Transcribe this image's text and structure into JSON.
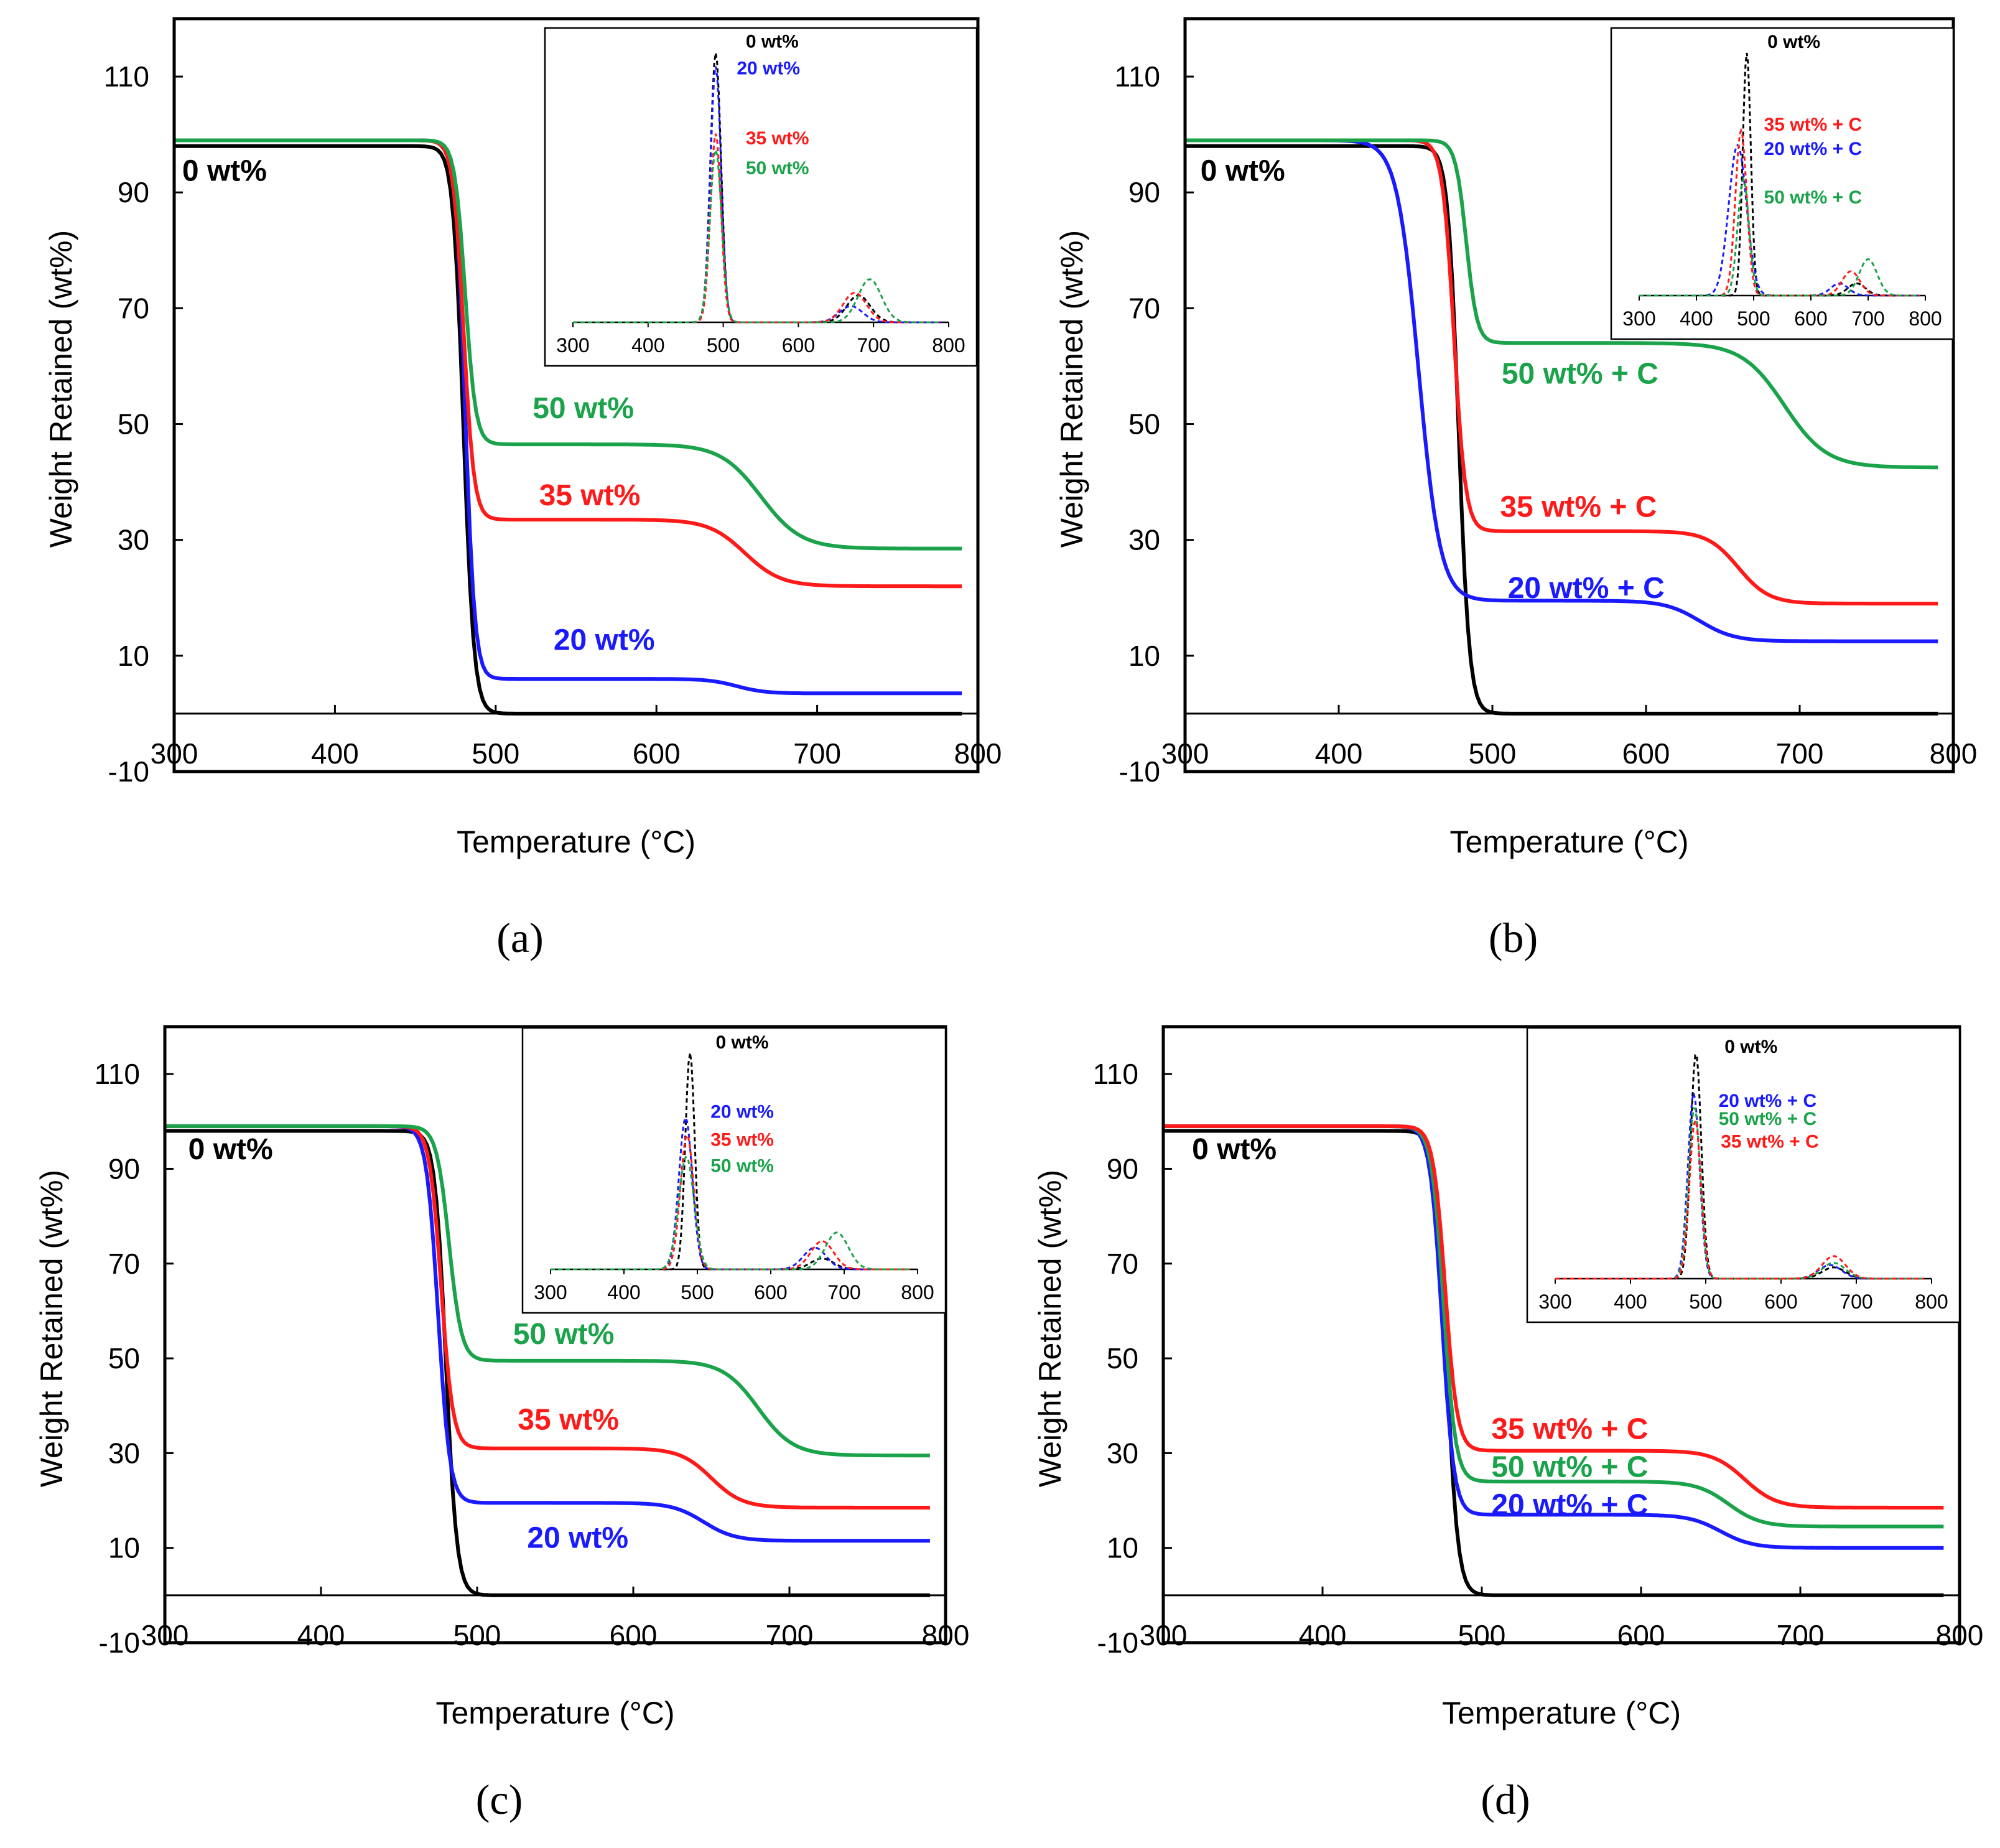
{
  "colors": {
    "0": "#000000",
    "20": "#1a1aff",
    "35": "#ff1a1a",
    "50": "#1aa34a"
  },
  "chart_data": [
    {
      "panel": "(a)",
      "type": "line",
      "xlabel": "Temperature (°C)",
      "ylabel": "Weight Retained (wt%)",
      "xlim": [
        300,
        800
      ],
      "ylim": [
        -10,
        120
      ],
      "xticks": [
        "300",
        "400",
        "500",
        "600",
        "700",
        "800"
      ],
      "yticks": [
        "-10",
        "10",
        "30",
        "50",
        "70",
        "90",
        "110"
      ],
      "series": [
        {
          "key": "0",
          "name": "0 wt%",
          "residue1": 0,
          "t1": 480,
          "w1": 13,
          "residue2": 0,
          "t2": 650,
          "w2": 40,
          "start": 98
        },
        {
          "key": "20",
          "name": "20 wt%",
          "residue1": 6,
          "t1": 481,
          "w1": 12,
          "residue2": 3.5,
          "t2": 650,
          "w2": 35,
          "start": 99
        },
        {
          "key": "35",
          "name": "35 wt%",
          "residue1": 33.5,
          "t1": 480,
          "w1": 13,
          "residue2": 22,
          "t2": 655,
          "w2": 45,
          "start": 99
        },
        {
          "key": "50",
          "name": "50 wt%",
          "residue1": 46.5,
          "t1": 481,
          "w1": 13,
          "residue2": 28.5,
          "t2": 665,
          "w2": 50,
          "start": 99
        }
      ],
      "labels": [
        {
          "key": "0",
          "text": "0 wt%",
          "x": 305,
          "y": 92
        },
        {
          "key": "50",
          "text": "50 wt%",
          "x": 523,
          "y": 51
        },
        {
          "key": "35",
          "text": "35 wt%",
          "x": 527,
          "y": 36
        },
        {
          "key": "20",
          "text": "20 wt%",
          "x": 536,
          "y": 11
        }
      ],
      "inset": {
        "xlim": [
          300,
          800
        ],
        "xticks": [
          "300",
          "400",
          "500",
          "600",
          "700",
          "800"
        ],
        "peaks": [
          {
            "key": "0",
            "t": 490,
            "h": 1.0,
            "w": 10,
            "t2": 680,
            "h2": 0.1
          },
          {
            "key": "20",
            "t": 490,
            "h": 0.95,
            "w": 10,
            "t2": 670,
            "h2": 0.06
          },
          {
            "key": "35",
            "t": 490,
            "h": 0.7,
            "w": 10,
            "t2": 675,
            "h2": 0.11
          },
          {
            "key": "50",
            "t": 490,
            "h": 0.64,
            "w": 11,
            "t2": 695,
            "h2": 0.16
          }
        ],
        "labels": [
          {
            "key": "0",
            "text": "0 wt%",
            "x": 530,
            "y": 1.02
          },
          {
            "key": "20",
            "text": "20 wt%",
            "x": 518,
            "y": 0.92
          },
          {
            "key": "35",
            "text": "35 wt%",
            "x": 530,
            "y": 0.66
          },
          {
            "key": "50",
            "text": "50 wt%",
            "x": 530,
            "y": 0.55
          }
        ]
      }
    },
    {
      "panel": "(b)",
      "type": "line",
      "xlabel": "Temperature (°C)",
      "ylabel": "Weight Retained (wt%)",
      "xlim": [
        300,
        800
      ],
      "ylim": [
        -10,
        120
      ],
      "xticks": [
        "300",
        "400",
        "500",
        "600",
        "700",
        "800"
      ],
      "yticks": [
        "-10",
        "10",
        "30",
        "50",
        "70",
        "90",
        "110"
      ],
      "series": [
        {
          "key": "0",
          "name": "0 wt%",
          "residue1": 0,
          "t1": 478,
          "w1": 14,
          "residue2": 0,
          "t2": 650,
          "w2": 40,
          "start": 98
        },
        {
          "key": "20",
          "name": "20 wt% + C",
          "residue1": 19.5,
          "t1": 452,
          "w1": 28,
          "residue2": 12.5,
          "t2": 635,
          "w2": 45,
          "start": 99
        },
        {
          "key": "35",
          "name": "35 wt% + C",
          "residue1": 31.5,
          "t1": 475,
          "w1": 15,
          "residue2": 19,
          "t2": 660,
          "w2": 40,
          "start": 99
        },
        {
          "key": "50",
          "name": "50 wt% + C",
          "residue1": 64,
          "t1": 483,
          "w1": 14,
          "residue2": 42.5,
          "t2": 690,
          "w2": 55,
          "start": 99
        }
      ],
      "labels": [
        {
          "key": "0",
          "text": "0 wt%",
          "x": 310,
          "y": 92
        },
        {
          "key": "50",
          "text": "50 wt% + C",
          "x": 506,
          "y": 57
        },
        {
          "key": "35",
          "text": "35 wt% + C",
          "x": 505,
          "y": 34
        },
        {
          "key": "20",
          "text": "20 wt% + C",
          "x": 510,
          "y": 20
        }
      ],
      "inset": {
        "xlim": [
          300,
          800
        ],
        "xticks": [
          "300",
          "400",
          "500",
          "600",
          "700",
          "800"
        ],
        "peaks": [
          {
            "key": "0",
            "t": 488,
            "h": 1.0,
            "w": 10,
            "t2": 680,
            "h2": 0.05
          },
          {
            "key": "20",
            "t": 472,
            "h": 0.62,
            "w": 22,
            "t2": 650,
            "h2": 0.05
          },
          {
            "key": "35",
            "t": 478,
            "h": 0.68,
            "w": 14,
            "t2": 670,
            "h2": 0.1
          },
          {
            "key": "50",
            "t": 482,
            "h": 0.48,
            "w": 14,
            "t2": 700,
            "h2": 0.15
          }
        ],
        "labels": [
          {
            "key": "0",
            "text": "0 wt%",
            "x": 524,
            "y": 1.02
          },
          {
            "key": "35",
            "text": "35 wt% + C",
            "x": 518,
            "y": 0.68
          },
          {
            "key": "20",
            "text": "20 wt% + C",
            "x": 518,
            "y": 0.58
          },
          {
            "key": "50",
            "text": "50 wt% + C",
            "x": 518,
            "y": 0.38
          }
        ]
      }
    },
    {
      "panel": "(c)",
      "type": "line",
      "xlabel": "Temperature (°C)",
      "ylabel": "Weight Retained (wt%)",
      "xlim": [
        300,
        800
      ],
      "ylim": [
        -10,
        120
      ],
      "xticks": [
        "300",
        "400",
        "500",
        "600",
        "700",
        "800"
      ],
      "yticks": [
        "-10",
        "10",
        "30",
        "50",
        "70",
        "90",
        "110"
      ],
      "series": [
        {
          "key": "0",
          "name": "0 wt%",
          "residue1": 0,
          "t1": 480,
          "w1": 14,
          "residue2": 0,
          "t2": 650,
          "w2": 40,
          "start": 98
        },
        {
          "key": "20",
          "name": "20 wt%",
          "residue1": 19.5,
          "t1": 475,
          "w1": 15,
          "residue2": 11.5,
          "t2": 645,
          "w2": 40,
          "start": 99
        },
        {
          "key": "35",
          "name": "35 wt%",
          "residue1": 31,
          "t1": 477,
          "w1": 15,
          "residue2": 18.5,
          "t2": 650,
          "w2": 40,
          "start": 99
        },
        {
          "key": "50",
          "name": "50 wt%",
          "residue1": 49.5,
          "t1": 482,
          "w1": 16,
          "residue2": 29.5,
          "t2": 680,
          "w2": 45,
          "start": 99
        }
      ],
      "labels": [
        {
          "key": "0",
          "text": "0 wt%",
          "x": 315,
          "y": 92
        },
        {
          "key": "50",
          "text": "50 wt%",
          "x": 523,
          "y": 53
        },
        {
          "key": "35",
          "text": "35 wt%",
          "x": 526,
          "y": 35
        },
        {
          "key": "20",
          "text": "20 wt%",
          "x": 532,
          "y": 10
        }
      ],
      "inset": {
        "xlim": [
          300,
          800
        ],
        "xticks": [
          "300",
          "400",
          "500",
          "600",
          "700",
          "800"
        ],
        "peaks": [
          {
            "key": "0",
            "t": 490,
            "h": 1.0,
            "w": 9,
            "t2": 670,
            "h2": 0.05
          },
          {
            "key": "20",
            "t": 484,
            "h": 0.7,
            "w": 13,
            "t2": 660,
            "h2": 0.1
          },
          {
            "key": "35",
            "t": 486,
            "h": 0.62,
            "w": 13,
            "t2": 670,
            "h2": 0.13
          },
          {
            "key": "50",
            "t": 485,
            "h": 0.52,
            "w": 15,
            "t2": 690,
            "h2": 0.17
          }
        ],
        "labels": [
          {
            "key": "0",
            "text": "0 wt%",
            "x": 525,
            "y": 1.02
          },
          {
            "key": "20",
            "text": "20 wt%",
            "x": 518,
            "y": 0.7
          },
          {
            "key": "35",
            "text": "35 wt%",
            "x": 518,
            "y": 0.57
          },
          {
            "key": "50",
            "text": "50 wt%",
            "x": 518,
            "y": 0.45
          }
        ]
      }
    },
    {
      "panel": "(d)",
      "type": "line",
      "xlabel": "Temperature (°C)",
      "ylabel": "Weight Retained (wt%)",
      "xlim": [
        300,
        800
      ],
      "ylim": [
        -10,
        120
      ],
      "xticks": [
        "300",
        "400",
        "500",
        "600",
        "700",
        "800"
      ],
      "yticks": [
        "-10",
        "10",
        "30",
        "50",
        "70",
        "90",
        "110"
      ],
      "series": [
        {
          "key": "0",
          "name": "0 wt%",
          "residue1": 0,
          "t1": 478,
          "w1": 14,
          "residue2": 0,
          "t2": 650,
          "w2": 40,
          "start": 98
        },
        {
          "key": "20",
          "name": "20 wt% + C",
          "residue1": 17,
          "t1": 475,
          "w1": 15,
          "residue2": 10,
          "t2": 650,
          "w2": 40,
          "start": 99
        },
        {
          "key": "50",
          "name": "50 wt% + C",
          "residue1": 24,
          "t1": 476,
          "w1": 15,
          "residue2": 14.5,
          "t2": 655,
          "w2": 40,
          "start": 99
        },
        {
          "key": "35",
          "name": "35 wt% + C",
          "residue1": 30.5,
          "t1": 477,
          "w1": 15,
          "residue2": 18.5,
          "t2": 665,
          "w2": 40,
          "start": 99
        }
      ],
      "labels": [
        {
          "key": "0",
          "text": "0 wt%",
          "x": 318,
          "y": 92
        },
        {
          "key": "35",
          "text": "35 wt% + C",
          "x": 506,
          "y": 33
        },
        {
          "key": "50",
          "text": "50 wt% + C",
          "x": 506,
          "y": 25
        },
        {
          "key": "20",
          "text": "20 wt% + C",
          "x": 506,
          "y": 17
        }
      ],
      "inset": {
        "xlim": [
          300,
          800
        ],
        "xticks": [
          "300",
          "400",
          "500",
          "600",
          "700",
          "800"
        ],
        "peaks": [
          {
            "key": "0",
            "t": 487,
            "h": 1.0,
            "w": 10,
            "t2": 670,
            "h2": 0.05
          },
          {
            "key": "20",
            "t": 484,
            "h": 0.82,
            "w": 11,
            "t2": 665,
            "h2": 0.06
          },
          {
            "key": "50",
            "t": 485,
            "h": 0.76,
            "w": 11,
            "t2": 670,
            "h2": 0.07
          },
          {
            "key": "35",
            "t": 486,
            "h": 0.7,
            "w": 11,
            "t2": 670,
            "h2": 0.1
          }
        ],
        "labels": [
          {
            "key": "0",
            "text": "0 wt%",
            "x": 525,
            "y": 1.0
          },
          {
            "key": "20",
            "text": "20 wt% + C",
            "x": 517,
            "y": 0.76
          },
          {
            "key": "50",
            "text": "50 wt% + C",
            "x": 517,
            "y": 0.68
          },
          {
            "key": "35",
            "text": "35 wt% + C",
            "x": 520,
            "y": 0.58
          }
        ]
      }
    }
  ]
}
